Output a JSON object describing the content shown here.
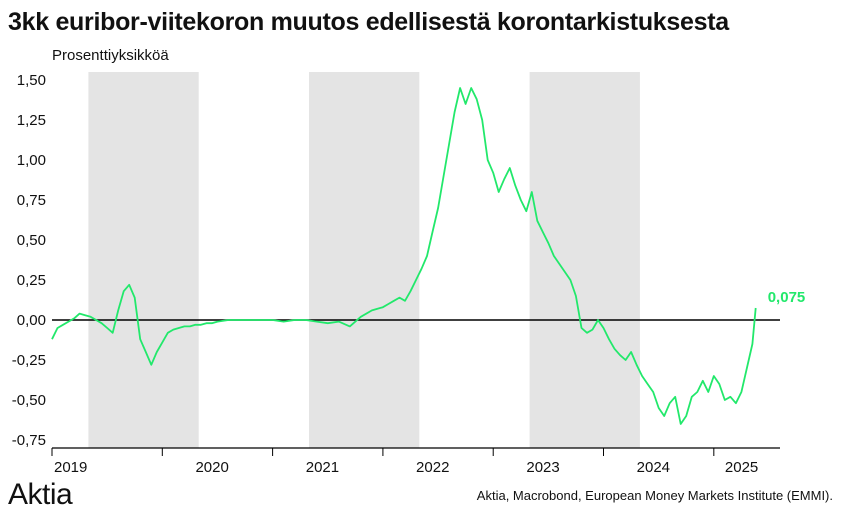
{
  "title": "3kk euribor-viitekoron muutos edellisestä korontarkistuksesta",
  "unit_label": "Prosenttiyksikköä",
  "logo_text": "Aktia",
  "source": "Aktia, Macrobond, European Money Markets Institute (EMMI).",
  "colors": {
    "line": "#22e86b",
    "shade": "#e4e4e4",
    "zero_line": "#000000"
  },
  "chart_data": {
    "type": "line",
    "title": "3kk euribor-viitekoron muutos edellisestä korontarkistuksesta",
    "ylabel": "Prosenttiyksikköä",
    "xlabel": "",
    "ylim": [
      -0.8,
      1.55
    ],
    "xlim": [
      2019.0,
      2025.6
    ],
    "y_ticks": [
      1.5,
      1.25,
      1.0,
      0.75,
      0.5,
      0.25,
      0.0,
      -0.25,
      -0.5,
      -0.75
    ],
    "y_tick_labels": [
      "1,50",
      "1,25",
      "1,00",
      "0,75",
      "0,50",
      "0,25",
      "0,00",
      "-0,25",
      "-0,50",
      "-0,75"
    ],
    "x_ticks": [
      2019,
      2020,
      2021,
      2022,
      2023,
      2024,
      2025
    ],
    "x_tick_labels": [
      "2019",
      "2020",
      "2021",
      "2022",
      "2023",
      "2024",
      "2025"
    ],
    "shaded_periods": [
      [
        2019.33,
        2020.33
      ],
      [
        2021.33,
        2022.33
      ],
      [
        2023.33,
        2024.33
      ]
    ],
    "end_label": "0,075",
    "grid": false,
    "series": [
      {
        "x": [
          2019.0,
          2019.05,
          2019.1,
          2019.15,
          2019.2,
          2019.25,
          2019.3,
          2019.35,
          2019.4,
          2019.45,
          2019.5,
          2019.55,
          2019.6,
          2019.65,
          2019.7,
          2019.75,
          2019.8,
          2019.85,
          2019.9,
          2019.95,
          2020.0,
          2020.05,
          2020.1,
          2020.15,
          2020.2,
          2020.25,
          2020.3,
          2020.35,
          2020.4,
          2020.45,
          2020.5,
          2020.6,
          2020.7,
          2020.8,
          2020.9,
          2021.0,
          2021.1,
          2021.2,
          2021.3,
          2021.4,
          2021.5,
          2021.6,
          2021.7,
          2021.8,
          2021.9,
          2022.0,
          2022.05,
          2022.1,
          2022.15,
          2022.2,
          2022.25,
          2022.3,
          2022.35,
          2022.4,
          2022.45,
          2022.5,
          2022.55,
          2022.6,
          2022.65,
          2022.7,
          2022.75,
          2022.8,
          2022.85,
          2022.9,
          2022.95,
          2023.0,
          2023.05,
          2023.1,
          2023.15,
          2023.2,
          2023.25,
          2023.3,
          2023.35,
          2023.4,
          2023.45,
          2023.5,
          2023.55,
          2023.6,
          2023.65,
          2023.7,
          2023.75,
          2023.8,
          2023.85,
          2023.9,
          2023.95,
          2024.0,
          2024.05,
          2024.1,
          2024.15,
          2024.2,
          2024.25,
          2024.3,
          2024.35,
          2024.4,
          2024.45,
          2024.5,
          2024.55,
          2024.6,
          2024.65,
          2024.7,
          2024.75,
          2024.8,
          2024.85,
          2024.9,
          2024.95,
          2025.0,
          2025.05,
          2025.1,
          2025.15,
          2025.2,
          2025.25,
          2025.3,
          2025.35,
          2025.38
        ],
        "values": [
          -0.12,
          -0.05,
          -0.03,
          -0.01,
          0.01,
          0.04,
          0.03,
          0.02,
          0.0,
          -0.02,
          -0.05,
          -0.08,
          0.06,
          0.18,
          0.22,
          0.14,
          -0.12,
          -0.2,
          -0.28,
          -0.2,
          -0.14,
          -0.08,
          -0.06,
          -0.05,
          -0.04,
          -0.04,
          -0.03,
          -0.03,
          -0.02,
          -0.02,
          -0.01,
          0.0,
          0.0,
          0.0,
          0.0,
          0.0,
          -0.01,
          0.0,
          0.0,
          -0.01,
          -0.02,
          -0.01,
          -0.04,
          0.02,
          0.06,
          0.08,
          0.1,
          0.12,
          0.14,
          0.12,
          0.18,
          0.25,
          0.32,
          0.4,
          0.55,
          0.7,
          0.9,
          1.1,
          1.3,
          1.45,
          1.35,
          1.45,
          1.38,
          1.25,
          1.0,
          0.92,
          0.8,
          0.88,
          0.95,
          0.84,
          0.75,
          0.68,
          0.8,
          0.62,
          0.55,
          0.48,
          0.4,
          0.35,
          0.3,
          0.25,
          0.15,
          -0.05,
          -0.08,
          -0.06,
          0.0,
          -0.05,
          -0.12,
          -0.18,
          -0.22,
          -0.25,
          -0.2,
          -0.28,
          -0.35,
          -0.4,
          -0.45,
          -0.55,
          -0.6,
          -0.52,
          -0.48,
          -0.65,
          -0.6,
          -0.48,
          -0.45,
          -0.38,
          -0.45,
          -0.35,
          -0.4,
          -0.5,
          -0.48,
          -0.52,
          -0.45,
          -0.3,
          -0.15,
          0.075
        ]
      }
    ]
  }
}
